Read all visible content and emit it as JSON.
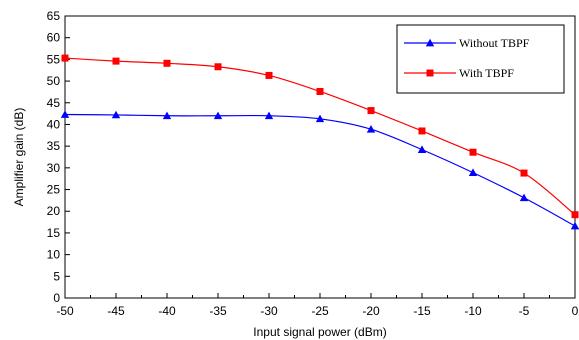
{
  "chart_data": {
    "type": "line",
    "title": "",
    "xlabel": "Input signal power (dBm)",
    "ylabel": "Amplifier gain (dB)",
    "xlim": [
      -50,
      0
    ],
    "ylim": [
      0,
      65
    ],
    "xticks": [
      -50,
      -45,
      -40,
      -35,
      -30,
      -25,
      -20,
      -15,
      -10,
      -5,
      0
    ],
    "yticks": [
      0,
      5,
      10,
      15,
      20,
      25,
      30,
      35,
      40,
      45,
      50,
      55,
      60,
      65
    ],
    "grid": false,
    "legend_position": "top-right",
    "series": [
      {
        "name": "Without TBPF",
        "color": "#0000ff",
        "marker": "triangle",
        "x": [
          -50,
          -45,
          -40,
          -35,
          -30,
          -25,
          -20,
          -15,
          -10,
          -5,
          0
        ],
        "y": [
          42.3,
          42.2,
          42.0,
          42.0,
          42.0,
          41.3,
          38.9,
          34.2,
          28.9,
          23.1,
          16.6
        ]
      },
      {
        "name": "With TBPF",
        "color": "#ff0000",
        "marker": "square",
        "x": [
          -50,
          -45,
          -40,
          -35,
          -30,
          -25,
          -20,
          -15,
          -10,
          -5,
          0
        ],
        "y": [
          55.3,
          54.6,
          54.1,
          53.3,
          51.3,
          47.6,
          43.2,
          38.5,
          33.6,
          28.8,
          19.2
        ]
      }
    ]
  }
}
